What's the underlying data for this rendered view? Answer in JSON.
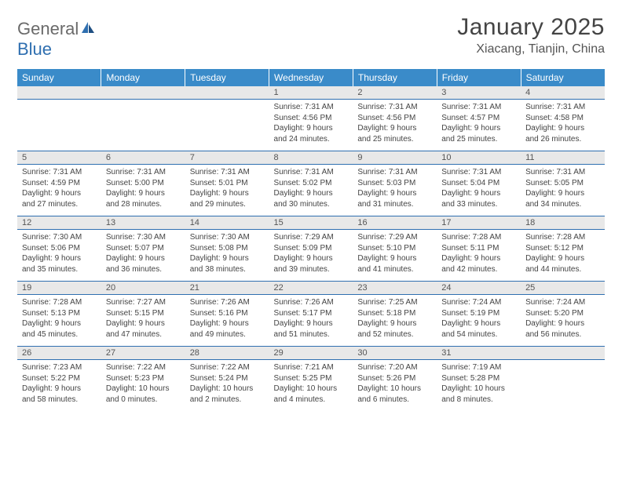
{
  "logo": {
    "word1": "General",
    "word2": "Blue"
  },
  "title": "January 2025",
  "location": "Xiacang, Tianjin, China",
  "colors": {
    "header_blue": "#3a8bc9",
    "divider_blue": "#2f6fb0",
    "band_gray": "#e8e8e8",
    "text": "#444444",
    "logo_gray": "#6a6a6a"
  },
  "daysOfWeek": [
    "Sunday",
    "Monday",
    "Tuesday",
    "Wednesday",
    "Thursday",
    "Friday",
    "Saturday"
  ],
  "weeks": [
    [
      null,
      null,
      null,
      {
        "n": "1",
        "sr": "7:31 AM",
        "ss": "4:56 PM",
        "dl": "9 hours and 24 minutes."
      },
      {
        "n": "2",
        "sr": "7:31 AM",
        "ss": "4:56 PM",
        "dl": "9 hours and 25 minutes."
      },
      {
        "n": "3",
        "sr": "7:31 AM",
        "ss": "4:57 PM",
        "dl": "9 hours and 25 minutes."
      },
      {
        "n": "4",
        "sr": "7:31 AM",
        "ss": "4:58 PM",
        "dl": "9 hours and 26 minutes."
      }
    ],
    [
      {
        "n": "5",
        "sr": "7:31 AM",
        "ss": "4:59 PM",
        "dl": "9 hours and 27 minutes."
      },
      {
        "n": "6",
        "sr": "7:31 AM",
        "ss": "5:00 PM",
        "dl": "9 hours and 28 minutes."
      },
      {
        "n": "7",
        "sr": "7:31 AM",
        "ss": "5:01 PM",
        "dl": "9 hours and 29 minutes."
      },
      {
        "n": "8",
        "sr": "7:31 AM",
        "ss": "5:02 PM",
        "dl": "9 hours and 30 minutes."
      },
      {
        "n": "9",
        "sr": "7:31 AM",
        "ss": "5:03 PM",
        "dl": "9 hours and 31 minutes."
      },
      {
        "n": "10",
        "sr": "7:31 AM",
        "ss": "5:04 PM",
        "dl": "9 hours and 33 minutes."
      },
      {
        "n": "11",
        "sr": "7:31 AM",
        "ss": "5:05 PM",
        "dl": "9 hours and 34 minutes."
      }
    ],
    [
      {
        "n": "12",
        "sr": "7:30 AM",
        "ss": "5:06 PM",
        "dl": "9 hours and 35 minutes."
      },
      {
        "n": "13",
        "sr": "7:30 AM",
        "ss": "5:07 PM",
        "dl": "9 hours and 36 minutes."
      },
      {
        "n": "14",
        "sr": "7:30 AM",
        "ss": "5:08 PM",
        "dl": "9 hours and 38 minutes."
      },
      {
        "n": "15",
        "sr": "7:29 AM",
        "ss": "5:09 PM",
        "dl": "9 hours and 39 minutes."
      },
      {
        "n": "16",
        "sr": "7:29 AM",
        "ss": "5:10 PM",
        "dl": "9 hours and 41 minutes."
      },
      {
        "n": "17",
        "sr": "7:28 AM",
        "ss": "5:11 PM",
        "dl": "9 hours and 42 minutes."
      },
      {
        "n": "18",
        "sr": "7:28 AM",
        "ss": "5:12 PM",
        "dl": "9 hours and 44 minutes."
      }
    ],
    [
      {
        "n": "19",
        "sr": "7:28 AM",
        "ss": "5:13 PM",
        "dl": "9 hours and 45 minutes."
      },
      {
        "n": "20",
        "sr": "7:27 AM",
        "ss": "5:15 PM",
        "dl": "9 hours and 47 minutes."
      },
      {
        "n": "21",
        "sr": "7:26 AM",
        "ss": "5:16 PM",
        "dl": "9 hours and 49 minutes."
      },
      {
        "n": "22",
        "sr": "7:26 AM",
        "ss": "5:17 PM",
        "dl": "9 hours and 51 minutes."
      },
      {
        "n": "23",
        "sr": "7:25 AM",
        "ss": "5:18 PM",
        "dl": "9 hours and 52 minutes."
      },
      {
        "n": "24",
        "sr": "7:24 AM",
        "ss": "5:19 PM",
        "dl": "9 hours and 54 minutes."
      },
      {
        "n": "25",
        "sr": "7:24 AM",
        "ss": "5:20 PM",
        "dl": "9 hours and 56 minutes."
      }
    ],
    [
      {
        "n": "26",
        "sr": "7:23 AM",
        "ss": "5:22 PM",
        "dl": "9 hours and 58 minutes."
      },
      {
        "n": "27",
        "sr": "7:22 AM",
        "ss": "5:23 PM",
        "dl": "10 hours and 0 minutes."
      },
      {
        "n": "28",
        "sr": "7:22 AM",
        "ss": "5:24 PM",
        "dl": "10 hours and 2 minutes."
      },
      {
        "n": "29",
        "sr": "7:21 AM",
        "ss": "5:25 PM",
        "dl": "10 hours and 4 minutes."
      },
      {
        "n": "30",
        "sr": "7:20 AM",
        "ss": "5:26 PM",
        "dl": "10 hours and 6 minutes."
      },
      {
        "n": "31",
        "sr": "7:19 AM",
        "ss": "5:28 PM",
        "dl": "10 hours and 8 minutes."
      },
      null
    ]
  ],
  "labels": {
    "sunrise": "Sunrise:",
    "sunset": "Sunset:",
    "daylight": "Daylight:"
  }
}
